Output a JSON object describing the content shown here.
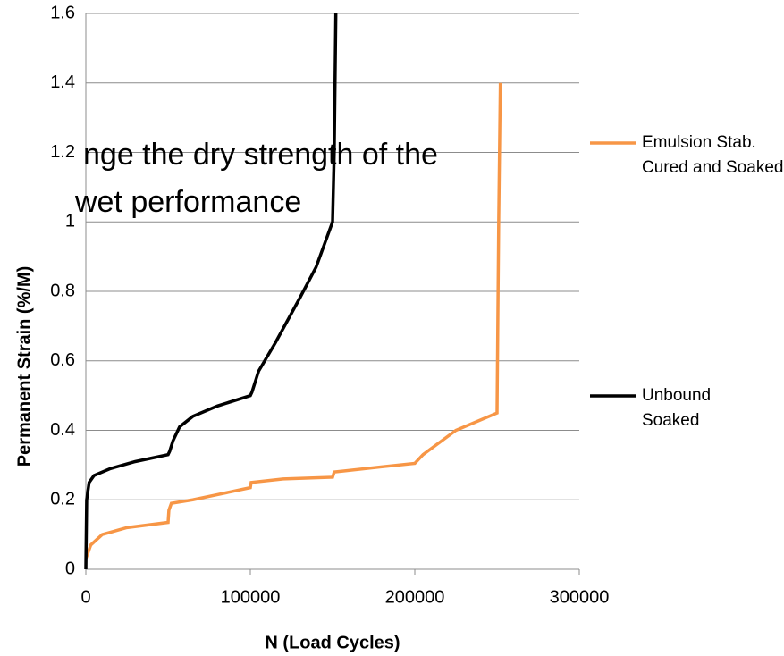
{
  "chart_data": {
    "type": "line",
    "annotations": [
      "nge the dry strength of the",
      "wet performance"
    ],
    "xlabel": "N (Load Cycles)",
    "ylabel": "Permanent Strain (%/M)",
    "xlim": [
      0,
      300000
    ],
    "xticks": [
      0,
      100000,
      200000,
      300000
    ],
    "ylim": [
      0,
      1.6
    ],
    "yticks": [
      0,
      0.2,
      0.4,
      0.6,
      0.8,
      1,
      1.2,
      1.4,
      1.6
    ],
    "grid": true,
    "legend": "right",
    "series": [
      {
        "name": "Emulsion Stab. Cured and Soaked",
        "color": "#f79646",
        "x": [
          0,
          3000,
          10000,
          25000,
          50000,
          50500,
          52000,
          65000,
          80000,
          100000,
          100500,
          120000,
          150000,
          151000,
          180000,
          200000,
          205000,
          225000,
          250000,
          251000,
          252000
        ],
        "values": [
          0.03,
          0.07,
          0.1,
          0.12,
          0.135,
          0.17,
          0.19,
          0.2,
          0.215,
          0.235,
          0.25,
          0.26,
          0.265,
          0.28,
          0.295,
          0.305,
          0.33,
          0.4,
          0.45,
          1.0,
          1.4
        ]
      },
      {
        "name": "Unbound Soaked",
        "color": "#000000",
        "x": [
          0,
          500,
          2000,
          5000,
          15000,
          30000,
          50000,
          51000,
          53000,
          57000,
          65000,
          80000,
          100000,
          101000,
          105000,
          115000,
          130000,
          140000,
          150000,
          151000,
          152000
        ],
        "values": [
          0,
          0.2,
          0.25,
          0.27,
          0.29,
          0.31,
          0.33,
          0.34,
          0.37,
          0.41,
          0.44,
          0.47,
          0.5,
          0.51,
          0.57,
          0.65,
          0.78,
          0.87,
          1.0,
          1.2,
          1.6
        ]
      }
    ]
  }
}
